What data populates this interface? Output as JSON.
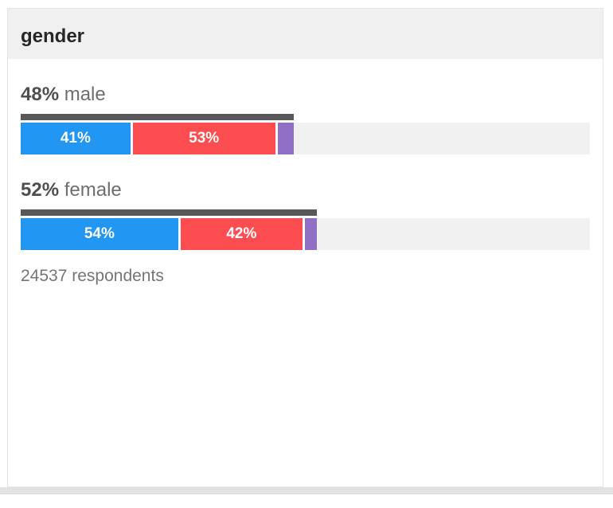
{
  "chart_data": {
    "type": "bar",
    "orientation": "horizontal",
    "variant": "stacked-exit-poll",
    "title": "gender",
    "footnote": "24537 respondents",
    "respondents": 24537,
    "track_color": "#f1f1f2",
    "share_bar_color": "#58585a",
    "legend": "none",
    "groups": [
      {
        "label": "male",
        "share_pct_label": "48%",
        "share_pct": 48,
        "segments": [
          {
            "value": 41,
            "label": "41%",
            "color": "#2196f3"
          },
          {
            "value": 53,
            "label": "53%",
            "color": "#fc4d50"
          },
          {
            "value": 6,
            "label": "",
            "color": "#8f70c5"
          }
        ]
      },
      {
        "label": "female",
        "share_pct_label": "52%",
        "share_pct": 52,
        "segments": [
          {
            "value": 54,
            "label": "54%",
            "color": "#2196f3"
          },
          {
            "value": 42,
            "label": "42%",
            "color": "#fc4d50"
          },
          {
            "value": 4,
            "label": "",
            "color": "#8f70c5"
          }
        ]
      }
    ]
  }
}
